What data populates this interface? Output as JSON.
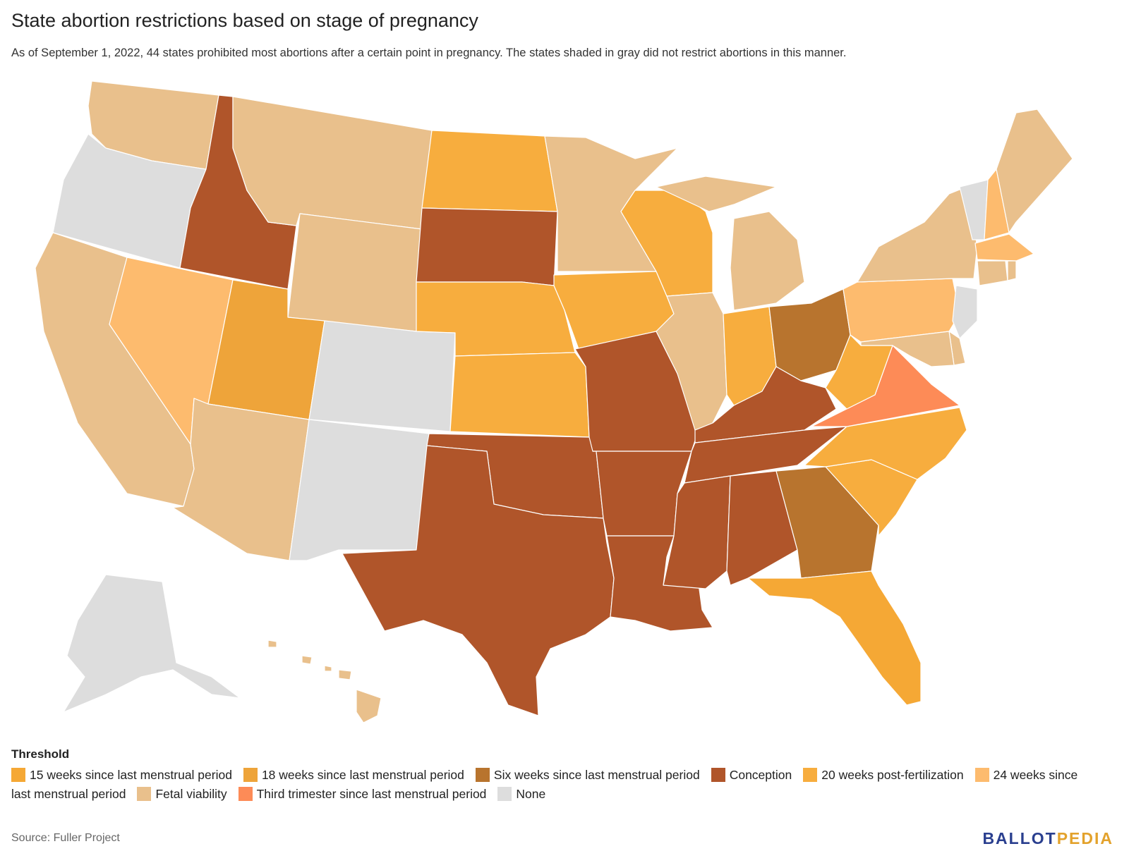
{
  "title": "State abortion restrictions based on stage of pregnancy",
  "subtitle": "As of September 1, 2022, 44 states prohibited most abortions after a certain point in pregnancy. The states shaded in gray did not restrict abortions in this manner.",
  "legend": {
    "title": "Threshold",
    "items": [
      {
        "label": "15 weeks since last menstrual period",
        "color": "#f5a835"
      },
      {
        "label": "18 weeks since last menstrual period",
        "color": "#eea43a"
      },
      {
        "label": "Six weeks since last menstrual period",
        "color": "#b8742e"
      },
      {
        "label": "Conception",
        "color": "#b0552a"
      },
      {
        "label": "20 weeks post-fertilization",
        "color": "#f7ad3e"
      },
      {
        "label": "24 weeks since last menstrual period",
        "color": "#fdbb6e"
      },
      {
        "label": "Fetal viability",
        "color": "#e9c08c"
      },
      {
        "label": "Third trimester since last menstrual period",
        "color": "#fd8b57"
      },
      {
        "label": "None",
        "color": "#dddddd"
      }
    ]
  },
  "map_data": {
    "WA": "Fetal viability",
    "OR": "None",
    "CA": "Fetal viability",
    "NV": "24 weeks since last menstrual period",
    "ID": "Conception",
    "MT": "Fetal viability",
    "WY": "Fetal viability",
    "UT": "18 weeks since last menstrual period",
    "AZ": "Fetal viability",
    "CO": "None",
    "NM": "None",
    "ND": "20 weeks post-fertilization",
    "SD": "Conception",
    "NE": "20 weeks post-fertilization",
    "KS": "20 weeks post-fertilization",
    "OK": "Conception",
    "TX": "Conception",
    "MN": "Fetal viability",
    "IA": "20 weeks post-fertilization",
    "MO": "Conception",
    "AR": "Conception",
    "LA": "Conception",
    "WI": "20 weeks post-fertilization",
    "IL": "Fetal viability",
    "MI": "Fetal viability",
    "IN": "20 weeks post-fertilization",
    "OH": "Six weeks since last menstrual period",
    "KY": "Conception",
    "TN": "Conception",
    "MS": "Conception",
    "AL": "Conception",
    "GA": "Six weeks since last menstrual period",
    "FL": "15 weeks since last menstrual period",
    "SC": "20 weeks post-fertilization",
    "NC": "20 weeks post-fertilization",
    "VA": "Third trimester since last menstrual period",
    "WV": "20 weeks post-fertilization",
    "PA": "24 weeks since last menstrual period",
    "NY": "Fetal viability",
    "VT": "None",
    "NH": "24 weeks since last menstrual period",
    "ME": "Fetal viability",
    "MA": "24 weeks since last menstrual period",
    "CT": "Fetal viability",
    "RI": "Fetal viability",
    "NJ": "None",
    "DE": "Fetal viability",
    "MD": "Fetal viability",
    "AK": "None",
    "HI": "Fetal viability"
  },
  "source": "Source: Fuller Project",
  "logo": {
    "part1": "BALLOT",
    "part2": "PEDIA"
  }
}
